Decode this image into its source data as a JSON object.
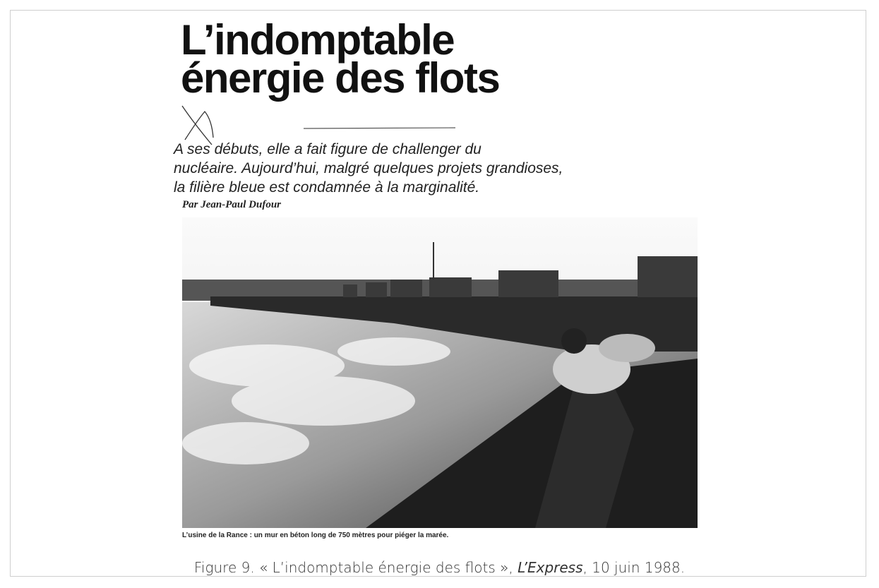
{
  "article": {
    "title": [
      "L’indomptable",
      "énergie des flots"
    ],
    "lead": [
      "A ses débuts, elle a fait figure de challenger du",
      "nucléaire. Aujourd’hui, malgré quelques projets grandioses,",
      "la filière bleue est condamnée à la marginalité."
    ],
    "byline": "Par Jean-Paul Dufour"
  },
  "photo": {
    "caption": "L’usine de la Rance : un mur en béton long de 750 mètres pour piéger la marée."
  },
  "figure": {
    "caption_before": "Figure 9. « L’indomptable énergie des flots », ",
    "source": "L’Express",
    "caption_after": ", 10 juin 1988."
  }
}
